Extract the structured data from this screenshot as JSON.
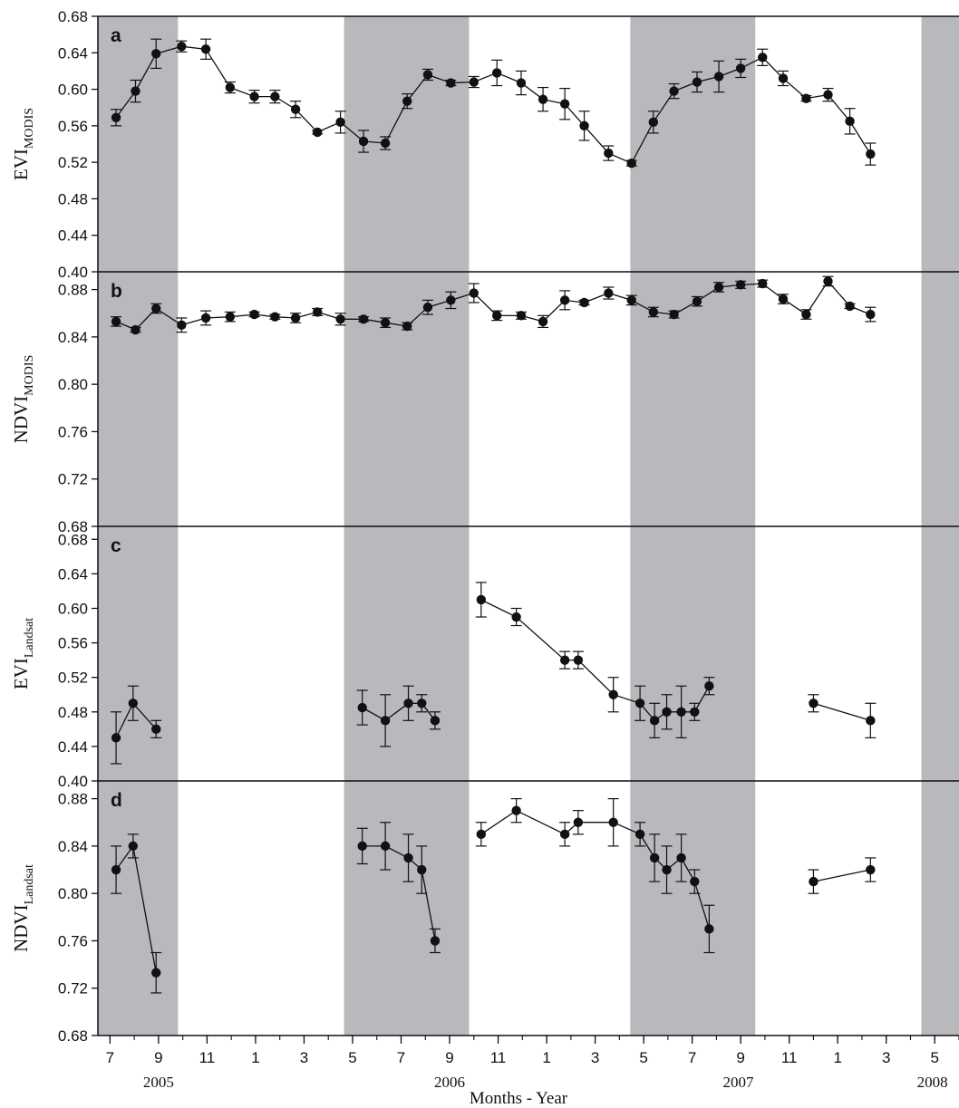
{
  "chart_data": {
    "type": "line",
    "xlabel": "Months - Year",
    "x_tick_labels": [
      "7",
      "9",
      "11",
      "1",
      "3",
      "5",
      "7",
      "9",
      "11",
      "1",
      "3",
      "5",
      "7",
      "9",
      "11",
      "1",
      "3",
      "5"
    ],
    "x_tick_months": [
      7,
      9,
      11,
      13,
      15,
      17,
      19,
      21,
      23,
      25,
      27,
      29,
      31,
      33,
      35,
      37,
      39,
      41
    ],
    "x_range_months": [
      6.5,
      42
    ],
    "years": [
      {
        "label": "2005",
        "month": 9.0
      },
      {
        "label": "2006",
        "month": 21.0
      },
      {
        "label": "2007",
        "month": 32.9
      },
      {
        "label": "2008",
        "month": 40.9
      }
    ],
    "shaded_periods": [
      [
        6.5,
        9.8
      ],
      [
        16.65,
        21.8
      ],
      [
        28.45,
        33.6
      ],
      [
        40.45,
        42
      ]
    ],
    "note": "",
    "panels": [
      {
        "letter": "a",
        "ylabel_main": "EVI",
        "ylabel_sub": "MODIS",
        "ylim": [
          0.4,
          0.68
        ],
        "yticks": [
          "0.40",
          "0.44",
          "0.48",
          "0.52",
          "0.56",
          "0.60",
          "0.64",
          "0.68"
        ],
        "segments": [
          [
            [
              7.25,
              0.569,
              0.009
            ],
            [
              8.05,
              0.598,
              0.012
            ],
            [
              8.9,
              0.639,
              0.016
            ],
            [
              9.95,
              0.647,
              0.006
            ],
            [
              10.95,
              0.644,
              0.011
            ],
            [
              11.95,
              0.602,
              0.006
            ],
            [
              12.95,
              0.592,
              0.007
            ],
            [
              13.8,
              0.592,
              0.007
            ],
            [
              14.65,
              0.578,
              0.009
            ],
            [
              15.55,
              0.553,
              0.002
            ],
            [
              16.5,
              0.564,
              0.012
            ],
            [
              17.45,
              0.543,
              0.012
            ],
            [
              18.35,
              0.541,
              0.007
            ],
            [
              19.25,
              0.587,
              0.008
            ],
            [
              20.1,
              0.616,
              0.006
            ],
            [
              21.05,
              0.607,
              0.003
            ],
            [
              22.0,
              0.608,
              0.006
            ],
            [
              22.95,
              0.618,
              0.014
            ],
            [
              23.95,
              0.607,
              0.013
            ],
            [
              24.85,
              0.589,
              0.013
            ],
            [
              25.75,
              0.584,
              0.017
            ],
            [
              26.55,
              0.56,
              0.016
            ],
            [
              27.55,
              0.53,
              0.008
            ],
            [
              28.5,
              0.519,
              0.003
            ],
            [
              29.4,
              0.564,
              0.012
            ],
            [
              30.25,
              0.598,
              0.008
            ],
            [
              31.2,
              0.608,
              0.011
            ],
            [
              32.1,
              0.614,
              0.017
            ],
            [
              33.0,
              0.623,
              0.01
            ],
            [
              33.9,
              0.635,
              0.009
            ],
            [
              34.75,
              0.612,
              0.008
            ],
            [
              35.7,
              0.59,
              0.003
            ],
            [
              36.6,
              0.594,
              0.007
            ],
            [
              37.5,
              0.565,
              0.014
            ],
            [
              38.35,
              0.529,
              0.012
            ]
          ]
        ]
      },
      {
        "letter": "b",
        "ylabel_main": "NDVI",
        "ylabel_sub": "MODIS",
        "ylim": [
          0.68,
          0.895
        ],
        "yticks": [
          "0.68",
          "0.72",
          "0.76",
          "0.80",
          "0.84",
          "0.88"
        ],
        "segments": [
          [
            [
              7.25,
              0.853,
              0.004
            ],
            [
              8.05,
              0.846,
              0.002
            ],
            [
              8.9,
              0.864,
              0.004
            ],
            [
              9.95,
              0.85,
              0.006
            ],
            [
              10.95,
              0.856,
              0.006
            ],
            [
              11.95,
              0.857,
              0.004
            ],
            [
              12.95,
              0.859,
              0.002
            ],
            [
              13.8,
              0.857,
              0.002
            ],
            [
              14.65,
              0.856,
              0.004
            ],
            [
              15.55,
              0.861,
              0.003
            ],
            [
              16.5,
              0.855,
              0.005
            ],
            [
              17.45,
              0.855,
              0.002
            ],
            [
              18.35,
              0.852,
              0.004
            ],
            [
              19.25,
              0.849,
              0.003
            ],
            [
              20.1,
              0.865,
              0.006
            ],
            [
              21.05,
              0.871,
              0.007
            ],
            [
              22.0,
              0.877,
              0.008
            ],
            [
              22.95,
              0.858,
              0.004
            ],
            [
              23.95,
              0.858,
              0.003
            ],
            [
              24.85,
              0.853,
              0.005
            ],
            [
              25.75,
              0.871,
              0.008
            ],
            [
              26.55,
              0.869,
              0.002
            ],
            [
              27.55,
              0.877,
              0.005
            ],
            [
              28.5,
              0.871,
              0.004
            ],
            [
              29.4,
              0.861,
              0.004
            ],
            [
              30.25,
              0.859,
              0.003
            ],
            [
              31.2,
              0.87,
              0.004
            ],
            [
              32.1,
              0.882,
              0.004
            ],
            [
              33.0,
              0.884,
              0.003
            ],
            [
              33.9,
              0.885,
              0.003
            ],
            [
              34.75,
              0.872,
              0.004
            ],
            [
              35.7,
              0.859,
              0.004
            ],
            [
              36.6,
              0.887,
              0.004
            ],
            [
              37.5,
              0.866,
              0.002
            ],
            [
              38.35,
              0.859,
              0.006
            ]
          ]
        ]
      },
      {
        "letter": "c",
        "ylabel_main": "EVI",
        "ylabel_sub": "Landsat",
        "ylim": [
          0.4,
          0.695
        ],
        "yticks": [
          "0.40",
          "0.44",
          "0.48",
          "0.52",
          "0.56",
          "0.60",
          "0.64",
          "0.68"
        ],
        "segments": [
          [
            [
              7.25,
              0.45,
              0.03
            ],
            [
              7.95,
              0.49,
              0.02
            ],
            [
              8.9,
              0.46,
              0.01
            ]
          ],
          [
            [
              17.4,
              0.485,
              0.02
            ],
            [
              18.35,
              0.47,
              0.03
            ],
            [
              19.3,
              0.49,
              0.02
            ],
            [
              19.85,
              0.49,
              0.01
            ],
            [
              20.4,
              0.47,
              0.01
            ]
          ],
          [
            [
              22.3,
              0.61,
              0.02
            ],
            [
              23.75,
              0.59,
              0.01
            ],
            [
              25.75,
              0.54,
              0.01
            ],
            [
              26.3,
              0.54,
              0.01
            ],
            [
              27.75,
              0.5,
              0.02
            ],
            [
              28.85,
              0.49,
              0.02
            ],
            [
              29.45,
              0.47,
              0.02
            ],
            [
              29.95,
              0.48,
              0.02
            ],
            [
              30.55,
              0.48,
              0.03
            ],
            [
              31.1,
              0.48,
              0.01
            ],
            [
              31.7,
              0.51,
              0.01
            ]
          ],
          [
            [
              36.0,
              0.49,
              0.01
            ],
            [
              38.35,
              0.47,
              0.02
            ]
          ]
        ]
      },
      {
        "letter": "d",
        "ylabel_main": "NDVI",
        "ylabel_sub": "Landsat",
        "ylim": [
          0.68,
          0.895
        ],
        "yticks": [
          "0.68",
          "0.72",
          "0.76",
          "0.80",
          "0.84",
          "0.88"
        ],
        "segments": [
          [
            [
              7.25,
              0.82,
              0.02
            ],
            [
              7.95,
              0.84,
              0.01
            ],
            [
              8.9,
              0.733,
              0.017
            ]
          ],
          [
            [
              17.4,
              0.84,
              0.015
            ],
            [
              18.35,
              0.84,
              0.02
            ],
            [
              19.3,
              0.83,
              0.02
            ],
            [
              19.85,
              0.82,
              0.02
            ],
            [
              20.4,
              0.76,
              0.01
            ]
          ],
          [
            [
              22.3,
              0.85,
              0.01
            ],
            [
              23.75,
              0.87,
              0.01
            ],
            [
              25.75,
              0.85,
              0.01
            ],
            [
              26.3,
              0.86,
              0.01
            ],
            [
              27.75,
              0.86,
              0.02
            ],
            [
              28.85,
              0.85,
              0.01
            ],
            [
              29.45,
              0.83,
              0.02
            ],
            [
              29.95,
              0.82,
              0.02
            ],
            [
              30.55,
              0.83,
              0.02
            ],
            [
              31.1,
              0.81,
              0.01
            ],
            [
              31.7,
              0.77,
              0.02
            ]
          ],
          [
            [
              36.0,
              0.81,
              0.01
            ],
            [
              38.35,
              0.82,
              0.01
            ]
          ]
        ]
      }
    ]
  },
  "colors": {
    "shade": "#b8b9bc",
    "ink": "#111111"
  }
}
